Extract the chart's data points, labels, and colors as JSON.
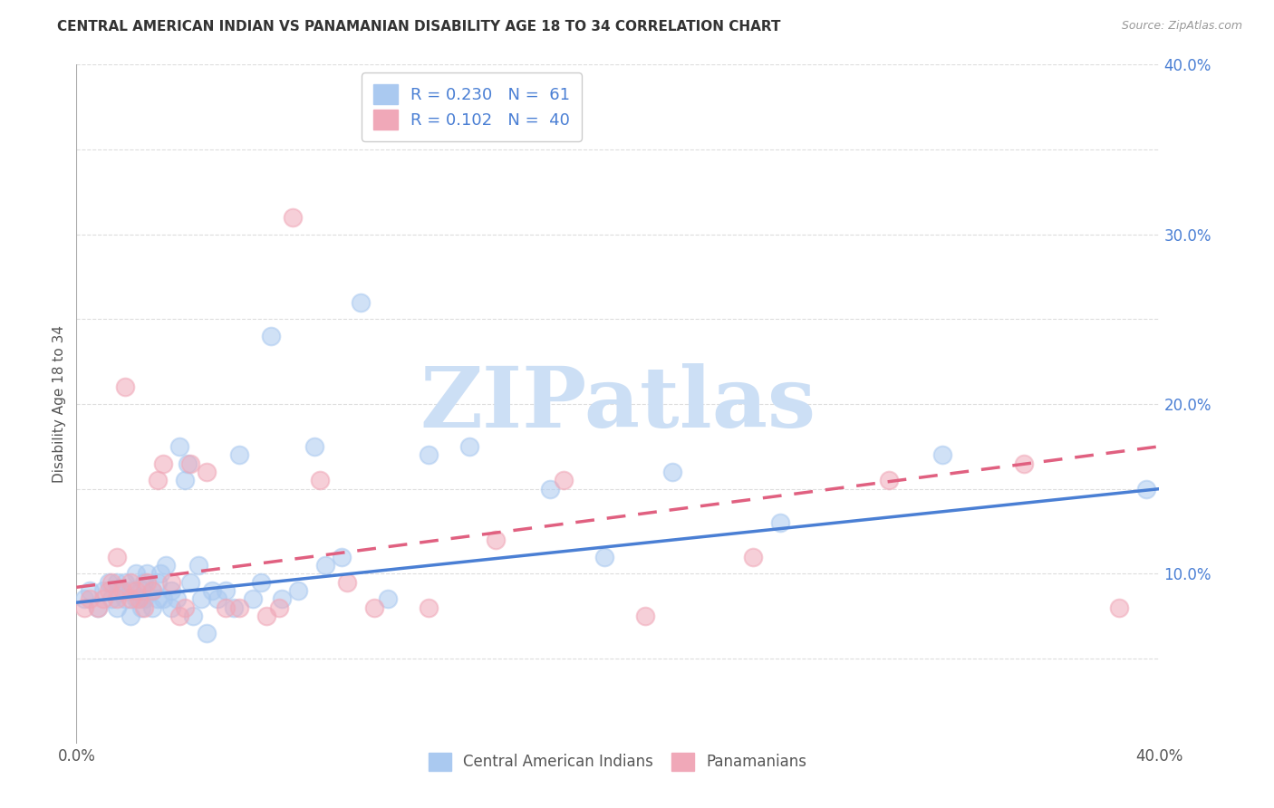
{
  "title": "CENTRAL AMERICAN INDIAN VS PANAMANIAN DISABILITY AGE 18 TO 34 CORRELATION CHART",
  "source": "Source: ZipAtlas.com",
  "ylabel": "Disability Age 18 to 34",
  "xlim": [
    0.0,
    0.4
  ],
  "ylim": [
    0.0,
    0.4
  ],
  "xticks": [
    0.0,
    0.05,
    0.1,
    0.15,
    0.2,
    0.25,
    0.3,
    0.35,
    0.4
  ],
  "yticks": [
    0.0,
    0.05,
    0.1,
    0.15,
    0.2,
    0.25,
    0.3,
    0.35,
    0.4
  ],
  "xtick_labels": [
    "0.0%",
    "",
    "",
    "",
    "",
    "",
    "",
    "",
    "40.0%"
  ],
  "ytick_labels": [
    "",
    "",
    "10.0%",
    "",
    "20.0%",
    "",
    "30.0%",
    "",
    "40.0%"
  ],
  "legend_r1": "R = 0.230",
  "legend_n1": "N =  61",
  "legend_r2": "R = 0.102",
  "legend_n2": "N =  40",
  "color_blue": "#aac9f0",
  "color_pink": "#f0a8b8",
  "line_blue": "#4a7fd4",
  "line_pink": "#e06080",
  "watermark_color": "#ccdff5",
  "watermark": "ZIPatlas",
  "blue_points_x": [
    0.003,
    0.005,
    0.008,
    0.01,
    0.012,
    0.013,
    0.015,
    0.015,
    0.016,
    0.018,
    0.018,
    0.02,
    0.02,
    0.022,
    0.022,
    0.024,
    0.024,
    0.025,
    0.025,
    0.026,
    0.028,
    0.028,
    0.03,
    0.03,
    0.031,
    0.032,
    0.033,
    0.035,
    0.035,
    0.037,
    0.038,
    0.04,
    0.041,
    0.042,
    0.043,
    0.045,
    0.046,
    0.048,
    0.05,
    0.052,
    0.055,
    0.058,
    0.06,
    0.065,
    0.068,
    0.072,
    0.076,
    0.082,
    0.088,
    0.092,
    0.098,
    0.105,
    0.115,
    0.13,
    0.145,
    0.175,
    0.195,
    0.22,
    0.26,
    0.32,
    0.395
  ],
  "blue_points_y": [
    0.085,
    0.09,
    0.08,
    0.09,
    0.095,
    0.085,
    0.095,
    0.08,
    0.09,
    0.085,
    0.095,
    0.09,
    0.075,
    0.085,
    0.1,
    0.09,
    0.08,
    0.095,
    0.085,
    0.1,
    0.09,
    0.08,
    0.085,
    0.095,
    0.1,
    0.085,
    0.105,
    0.09,
    0.08,
    0.085,
    0.175,
    0.155,
    0.165,
    0.095,
    0.075,
    0.105,
    0.085,
    0.065,
    0.09,
    0.085,
    0.09,
    0.08,
    0.17,
    0.085,
    0.095,
    0.24,
    0.085,
    0.09,
    0.175,
    0.105,
    0.11,
    0.26,
    0.085,
    0.17,
    0.175,
    0.15,
    0.11,
    0.16,
    0.13,
    0.17,
    0.15
  ],
  "pink_points_x": [
    0.003,
    0.005,
    0.008,
    0.01,
    0.012,
    0.013,
    0.015,
    0.015,
    0.017,
    0.018,
    0.02,
    0.02,
    0.022,
    0.023,
    0.025,
    0.026,
    0.028,
    0.03,
    0.032,
    0.035,
    0.038,
    0.04,
    0.042,
    0.048,
    0.055,
    0.06,
    0.07,
    0.075,
    0.08,
    0.09,
    0.1,
    0.11,
    0.13,
    0.155,
    0.18,
    0.21,
    0.25,
    0.3,
    0.35,
    0.385
  ],
  "pink_points_y": [
    0.08,
    0.085,
    0.08,
    0.085,
    0.09,
    0.095,
    0.085,
    0.11,
    0.09,
    0.21,
    0.085,
    0.095,
    0.09,
    0.085,
    0.08,
    0.095,
    0.09,
    0.155,
    0.165,
    0.095,
    0.075,
    0.08,
    0.165,
    0.16,
    0.08,
    0.08,
    0.075,
    0.08,
    0.31,
    0.155,
    0.095,
    0.08,
    0.08,
    0.12,
    0.155,
    0.075,
    0.11,
    0.155,
    0.165,
    0.08
  ],
  "blue_line_x0": 0.0,
  "blue_line_y0": 0.083,
  "blue_line_x1": 0.4,
  "blue_line_y1": 0.15,
  "pink_line_x0": 0.0,
  "pink_line_y0": 0.092,
  "pink_line_x1": 0.4,
  "pink_line_y1": 0.175
}
